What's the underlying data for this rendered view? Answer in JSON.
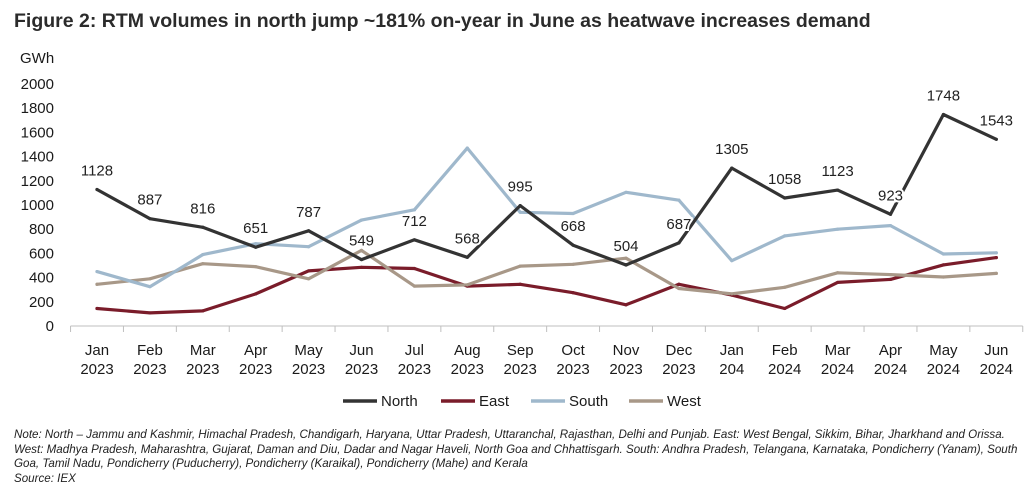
{
  "title": "Figure 2: RTM volumes in north jump ~181% on-year in June as heatwave increases demand",
  "note": "Note: North – Jammu and Kashmir, Himachal Pradesh, Chandigarh, Haryana, Uttar Pradesh, Uttaranchal, Rajasthan, Delhi and Punjab. East: West Bengal, Sikkim, Bihar, Jharkhand and Orissa. West: Madhya Pradesh, Maharashtra, Gujarat, Daman and Diu, Dadar and Nagar Haveli, North Goa and Chhattisgarh. South: Andhra Pradesh, Telangana, Karnataka, Pondicherry (Yanam), South Goa, Tamil Nadu, Pondicherry (Puducherry), Pondicherry (Karaikal), Pondicherry (Mahe) and Kerala",
  "source": "Source: IEX",
  "chart_data": {
    "type": "line",
    "title": "Figure 2: RTM volumes in north jump ~181% on-year in June as heatwave increases demand",
    "ylabel": "GWh",
    "xlabel": "",
    "ylim": [
      0,
      2000
    ],
    "yticks": [
      0,
      200,
      400,
      600,
      800,
      1000,
      1200,
      1400,
      1600,
      1800,
      2000
    ],
    "grid": false,
    "legend": "bottom",
    "categories": [
      [
        "Jan",
        "2023"
      ],
      [
        "Feb",
        "2023"
      ],
      [
        "Mar",
        "2023"
      ],
      [
        "Apr",
        "2023"
      ],
      [
        "May",
        "2023"
      ],
      [
        "Jun",
        "2023"
      ],
      [
        "Jul",
        "2023"
      ],
      [
        "Aug",
        "2023"
      ],
      [
        "Sep",
        "2023"
      ],
      [
        "Oct",
        "2023"
      ],
      [
        "Nov",
        "2023"
      ],
      [
        "Dec",
        "2023"
      ],
      [
        "Jan",
        "204"
      ],
      [
        "Feb",
        "2024"
      ],
      [
        "Mar",
        "2024"
      ],
      [
        "Apr",
        "2024"
      ],
      [
        "May",
        "2024"
      ],
      [
        "Jun",
        "2024"
      ]
    ],
    "series": [
      {
        "name": "North",
        "color": "#333333",
        "labeled": true,
        "values": [
          1128,
          887,
          816,
          651,
          787,
          549,
          712,
          568,
          995,
          668,
          504,
          687,
          1305,
          1058,
          1123,
          923,
          1748,
          1543
        ]
      },
      {
        "name": "East",
        "color": "#7a1c2a",
        "labeled": false,
        "values": [
          145,
          108,
          125,
          265,
          455,
          485,
          475,
          330,
          345,
          275,
          175,
          345,
          255,
          145,
          360,
          385,
          505,
          565
        ]
      },
      {
        "name": "South",
        "color": "#9fb8cc",
        "labeled": false,
        "values": [
          450,
          325,
          590,
          680,
          655,
          875,
          960,
          1470,
          940,
          930,
          1105,
          1040,
          540,
          745,
          800,
          830,
          595,
          605
        ]
      },
      {
        "name": "West",
        "color": "#a89888",
        "labeled": false,
        "values": [
          345,
          390,
          515,
          490,
          390,
          625,
          330,
          340,
          495,
          510,
          560,
          310,
          265,
          320,
          440,
          425,
          405,
          435
        ]
      }
    ],
    "series_order": [
      "East",
      "West",
      "South",
      "North"
    ]
  }
}
